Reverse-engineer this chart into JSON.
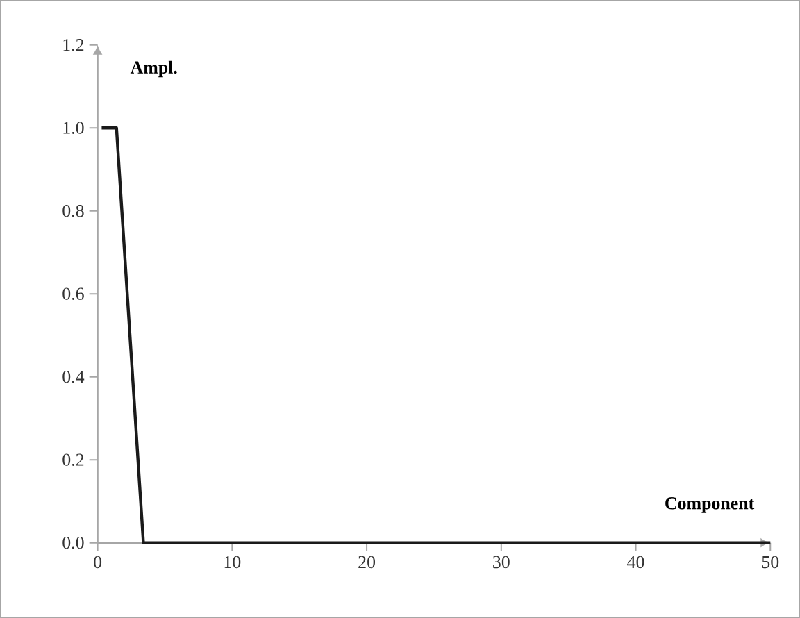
{
  "chart_data": {
    "type": "line",
    "xlabel": "Component",
    "ylabel": "Ampl.",
    "x": [
      0.3,
      1.4,
      3.4,
      50
    ],
    "values": [
      1.0,
      1.0,
      0.0,
      0.0
    ],
    "color": "#1a1a1a",
    "xlim": [
      0,
      50
    ],
    "xticks": [
      0,
      10,
      20,
      30,
      40,
      50
    ],
    "ylim": [
      0,
      1.2
    ],
    "yticks": [
      {
        "value": 0,
        "label": "0.0"
      },
      0.2,
      0.4,
      0.6,
      0.8,
      {
        "value": 1,
        "label": "1.0"
      },
      1.2
    ],
    "marker": "none",
    "line_style": "solid"
  }
}
